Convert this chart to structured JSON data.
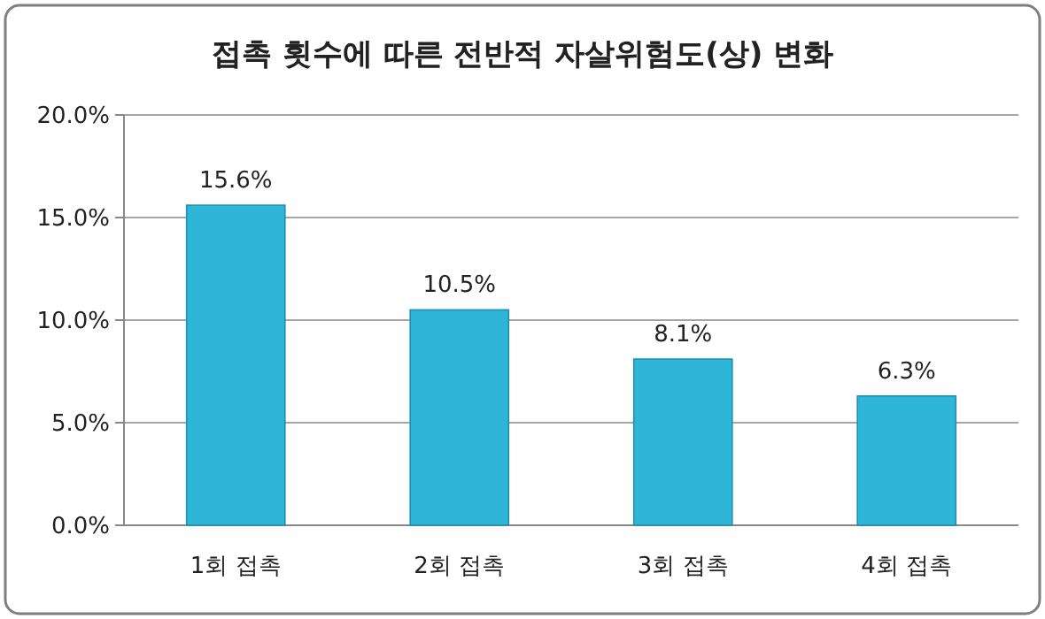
{
  "chart_data": {
    "type": "bar",
    "title": "접촉 횟수에 따른 전반적 자살위험도(상) 변화",
    "categories": [
      "1회 접촉",
      "2회 접촉",
      "3회 접촉",
      "4회 접촉"
    ],
    "values": [
      15.6,
      10.5,
      8.1,
      6.3
    ],
    "value_labels": [
      "15.6%",
      "10.5%",
      "8.1%",
      "6.3%"
    ],
    "color": "#2fb5d8",
    "ylim": [
      0,
      20
    ],
    "yticks": [
      {
        "value": 0,
        "label": "0.0%"
      },
      {
        "value": 5,
        "label": "5.0%"
      },
      {
        "value": 10,
        "label": "10.0%"
      },
      {
        "value": 15,
        "label": "15.0%"
      },
      {
        "value": 20,
        "label": "20.0%"
      }
    ],
    "grid": "y"
  }
}
